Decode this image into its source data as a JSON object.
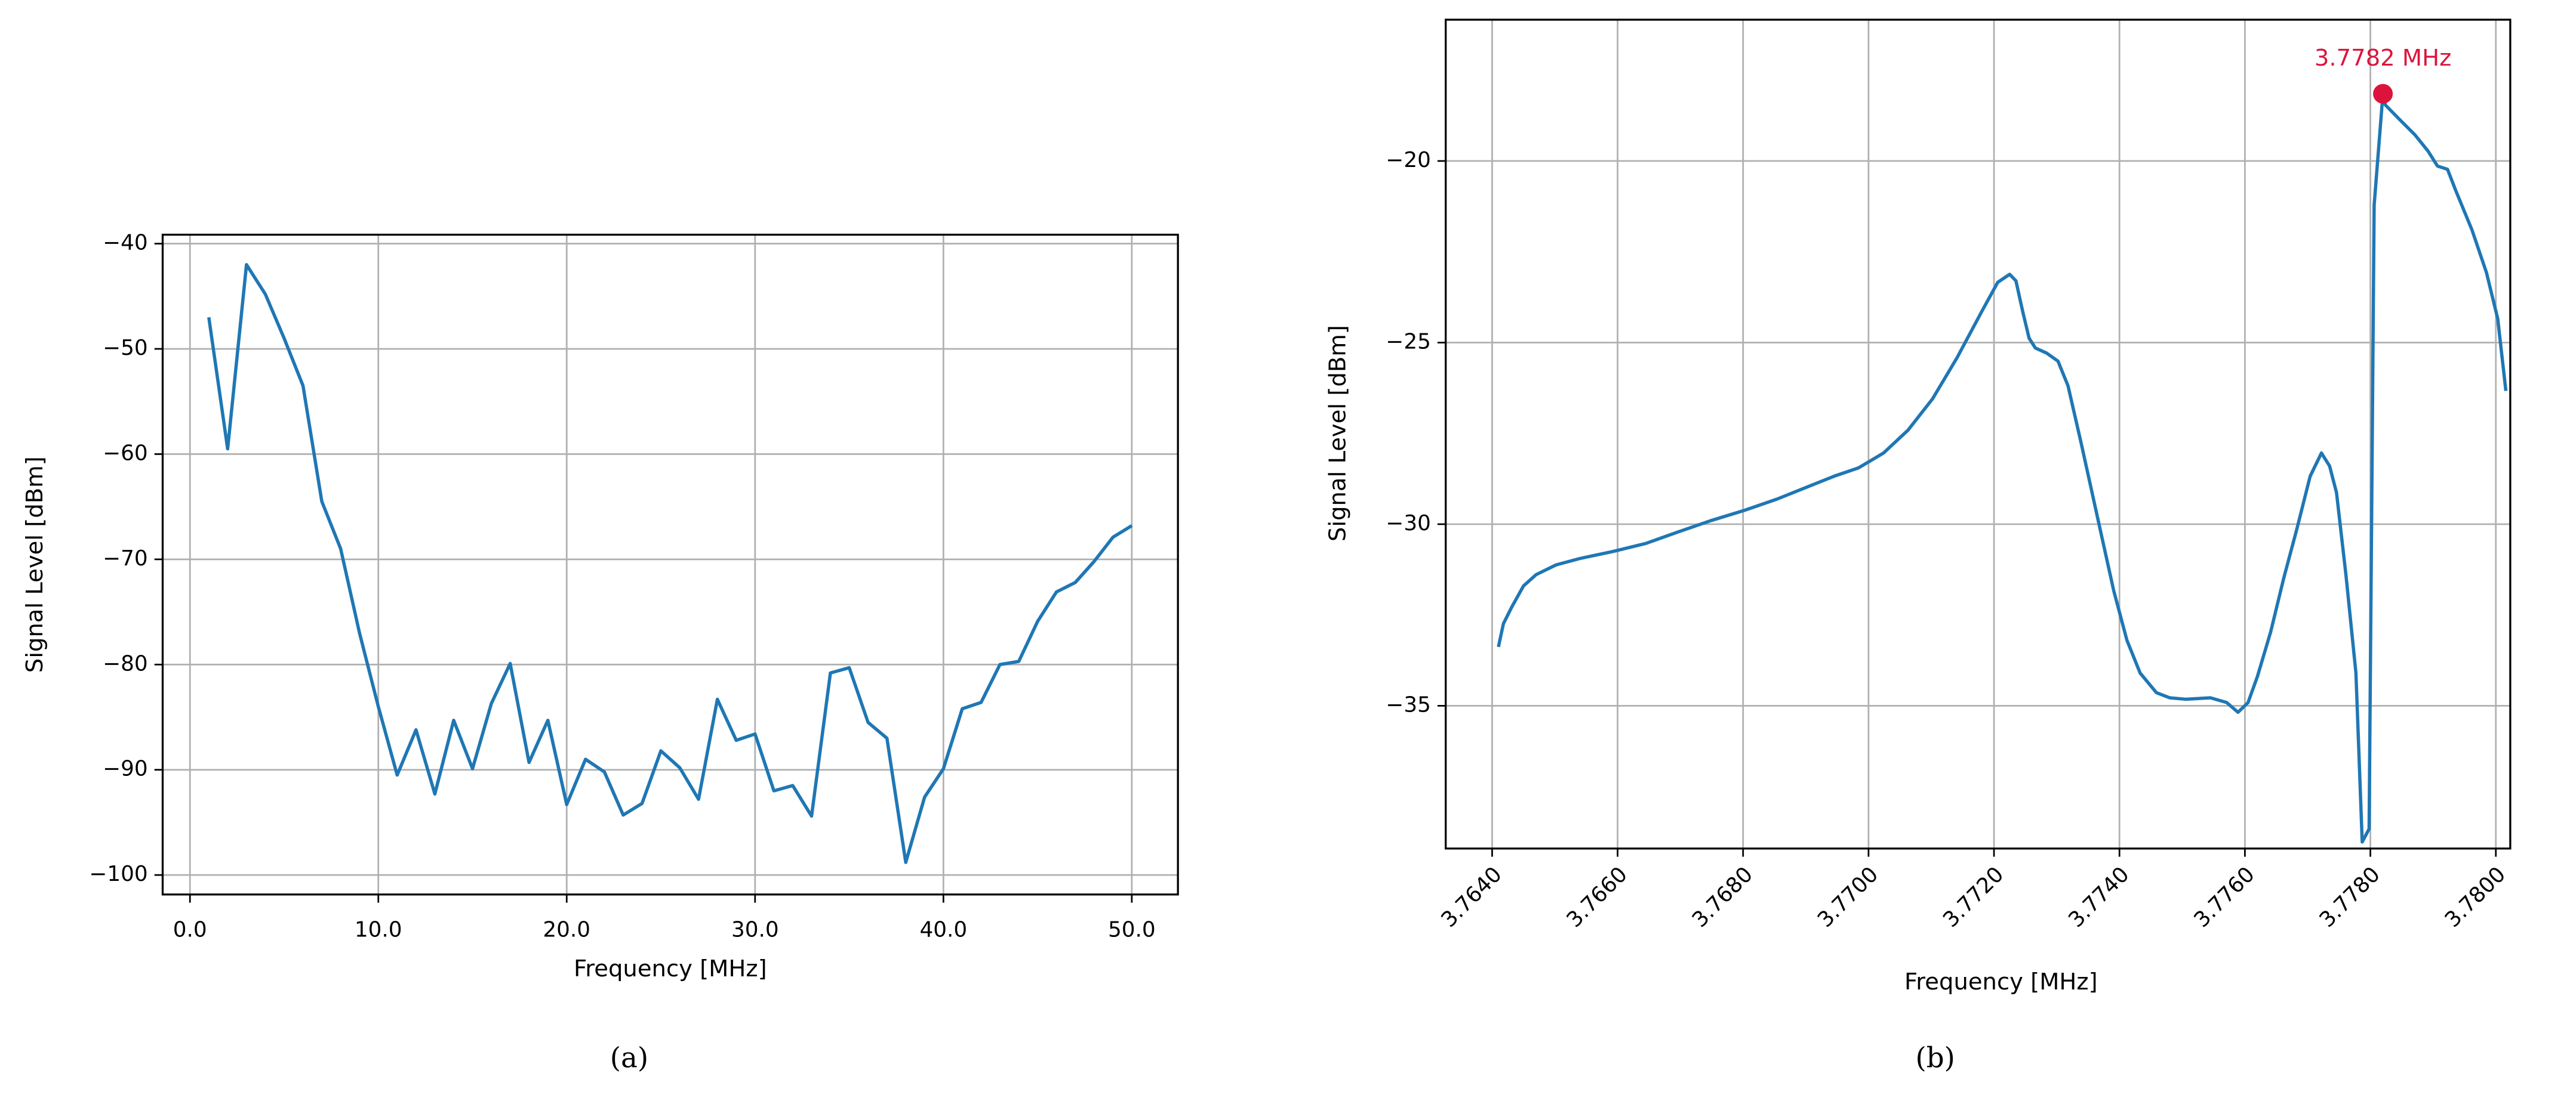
{
  "chart_data": [
    {
      "type": "line",
      "caption": "(a)",
      "x_label": "Frequency [MHz]",
      "y_label": "Signal Level [dBm]",
      "color": "#1f77b4",
      "grid": true,
      "x": [
        1,
        2,
        3,
        4,
        5,
        6,
        7,
        8,
        9,
        10,
        11,
        12,
        13,
        14,
        15,
        16,
        17,
        18,
        19,
        20,
        21,
        22,
        23,
        24,
        25,
        26,
        27,
        28,
        29,
        30,
        31,
        32,
        33,
        34,
        35,
        36,
        37,
        38,
        39,
        40,
        41,
        42,
        43,
        44,
        45,
        46,
        47,
        48,
        49,
        50
      ],
      "values": [
        -47,
        -59.5,
        -42,
        -44.8,
        -49,
        -53.5,
        -64.5,
        -69,
        -77,
        -84,
        -90.5,
        -86.2,
        -92.3,
        -85.3,
        -89.9,
        -83.7,
        -79.9,
        -89.3,
        -85.3,
        -93.3,
        -89,
        -90.2,
        -94.3,
        -93.2,
        -88.2,
        -89.8,
        -92.8,
        -83.3,
        -87.2,
        -86.6,
        -92,
        -91.5,
        -94.4,
        -80.8,
        -80.3,
        -85.5,
        -87,
        -98.8,
        -92.6,
        -89.9,
        -84.2,
        -83.6,
        -80,
        -79.7,
        -75.9,
        -73.1,
        -72.2,
        -70.2,
        -67.9,
        -66.8
      ],
      "xlim": [
        -1.45,
        52.45
      ],
      "ylim": [
        -101.85,
        -39.15
      ],
      "xticks": [
        {
          "value": 0,
          "label": "0.0"
        },
        {
          "value": 10,
          "label": "10.0"
        },
        {
          "value": 20,
          "label": "20.0"
        },
        {
          "value": 30,
          "label": "30.0"
        },
        {
          "value": 40,
          "label": "40.0"
        },
        {
          "value": 50,
          "label": "50.0"
        }
      ],
      "yticks": [
        {
          "value": -100,
          "label": "−100"
        },
        {
          "value": -90,
          "label": "−90"
        },
        {
          "value": -80,
          "label": "−80"
        },
        {
          "value": -70,
          "label": "−70"
        },
        {
          "value": -60,
          "label": "−60"
        },
        {
          "value": -50,
          "label": "−50"
        },
        {
          "value": -40,
          "label": "−40"
        }
      ]
    },
    {
      "type": "line",
      "caption": "(b)",
      "x_label": "Frequency [MHz]",
      "y_label": "Signal Level [dBm]",
      "color": "#1f77b4",
      "grid": true,
      "x": [
        3.7641,
        3.76418,
        3.76431,
        3.7645,
        3.7647,
        3.76502,
        3.76541,
        3.76593,
        3.76645,
        3.76697,
        3.76749,
        3.76802,
        3.76854,
        3.76906,
        3.76945,
        3.76984,
        3.77024,
        3.77063,
        3.77102,
        3.77141,
        3.7718,
        3.77206,
        3.77225,
        3.77235,
        3.77246,
        3.77256,
        3.77266,
        3.77284,
        3.77302,
        3.77318,
        3.77339,
        3.77365,
        3.77391,
        3.77412,
        3.77433,
        3.77459,
        3.7748,
        3.77506,
        3.77545,
        3.77571,
        3.77589,
        3.77605,
        3.7762,
        3.77641,
        3.77662,
        3.77683,
        3.77704,
        3.77722,
        3.77735,
        3.77746,
        3.77761,
        3.77777,
        3.77787,
        3.77798,
        3.77806,
        3.7782,
        3.77824,
        3.77845,
        3.77871,
        3.77892,
        3.77907,
        3.77923,
        3.77936,
        3.77962,
        3.77985,
        3.78003,
        3.78016
      ],
      "values": [
        -33.38,
        -32.74,
        -32.29,
        -31.7,
        -31.39,
        -31.12,
        -30.94,
        -30.75,
        -30.53,
        -30.21,
        -29.9,
        -29.62,
        -29.31,
        -28.95,
        -28.68,
        -28.45,
        -28.04,
        -27.41,
        -26.55,
        -25.42,
        -24.16,
        -23.34,
        -23.12,
        -23.3,
        -24.16,
        -24.88,
        -25.15,
        -25.29,
        -25.51,
        -26.19,
        -27.77,
        -29.81,
        -31.84,
        -33.2,
        -34.1,
        -34.64,
        -34.78,
        -34.82,
        -34.78,
        -34.91,
        -35.18,
        -34.91,
        -34.19,
        -32.97,
        -31.48,
        -30.12,
        -28.68,
        -28.04,
        -28.4,
        -29.13,
        -31.39,
        -34.1,
        -38.75,
        -38.39,
        -21.22,
        -18.15,
        -18.46,
        -18.83,
        -19.28,
        -19.73,
        -20.14,
        -20.23,
        -20.81,
        -21.9,
        -23.07,
        -24.34,
        -26.33
      ],
      "peak": {
        "x": 3.7782,
        "y": -18.15,
        "label": "3.7782 MHz",
        "color": "#dc143c"
      },
      "xlim": [
        3.76326,
        3.78023
      ],
      "ylim": [
        -38.93,
        -16.11
      ],
      "xticks": [
        {
          "value": 3.764,
          "label": "3.7640"
        },
        {
          "value": 3.766,
          "label": "3.7660"
        },
        {
          "value": 3.768,
          "label": "3.7680"
        },
        {
          "value": 3.77,
          "label": "3.7700"
        },
        {
          "value": 3.772,
          "label": "3.7720"
        },
        {
          "value": 3.774,
          "label": "3.7740"
        },
        {
          "value": 3.776,
          "label": "3.7760"
        },
        {
          "value": 3.778,
          "label": "3.7780"
        },
        {
          "value": 3.78,
          "label": "3.7800"
        }
      ],
      "yticks": [
        {
          "value": -35,
          "label": "−35"
        },
        {
          "value": -30,
          "label": "−30"
        },
        {
          "value": -25,
          "label": "−25"
        },
        {
          "value": -20,
          "label": "−20"
        }
      ]
    }
  ]
}
